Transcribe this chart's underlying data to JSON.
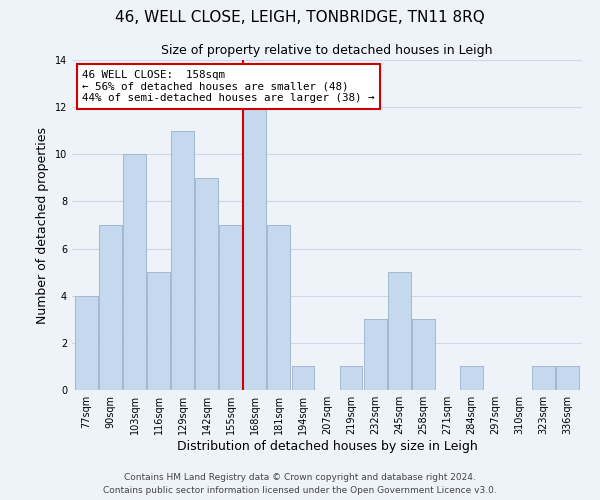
{
  "title": "46, WELL CLOSE, LEIGH, TONBRIDGE, TN11 8RQ",
  "subtitle": "Size of property relative to detached houses in Leigh",
  "xlabel": "Distribution of detached houses by size in Leigh",
  "ylabel": "Number of detached properties",
  "bin_labels": [
    "77sqm",
    "90sqm",
    "103sqm",
    "116sqm",
    "129sqm",
    "142sqm",
    "155sqm",
    "168sqm",
    "181sqm",
    "194sqm",
    "207sqm",
    "219sqm",
    "232sqm",
    "245sqm",
    "258sqm",
    "271sqm",
    "284sqm",
    "297sqm",
    "310sqm",
    "323sqm",
    "336sqm"
  ],
  "bar_heights": [
    4,
    7,
    10,
    5,
    11,
    9,
    7,
    12,
    7,
    1,
    0,
    1,
    3,
    5,
    3,
    0,
    1,
    0,
    0,
    1,
    1
  ],
  "bar_color": "#c5d8ed",
  "bar_edge_color": "#a0b8d0",
  "vline_bin_index": 6.5,
  "annotation_title": "46 WELL CLOSE:  158sqm",
  "annotation_line1": "← 56% of detached houses are smaller (48)",
  "annotation_line2": "44% of semi-detached houses are larger (38) →",
  "annotation_box_color": "#ffffff",
  "annotation_box_edge": "#cc0000",
  "vline_color": "#cc0000",
  "ylim": [
    0,
    14
  ],
  "yticks": [
    0,
    2,
    4,
    6,
    8,
    10,
    12,
    14
  ],
  "footer_line1": "Contains HM Land Registry data © Crown copyright and database right 2024.",
  "footer_line2": "Contains public sector information licensed under the Open Government Licence v3.0.",
  "bg_color": "#eef3fa",
  "plot_bg_color": "#eef3fa",
  "grid_color": "#d0d8e8",
  "title_fontsize": 11,
  "subtitle_fontsize": 9,
  "axis_label_fontsize": 9,
  "tick_fontsize": 7,
  "footer_fontsize": 6.5
}
